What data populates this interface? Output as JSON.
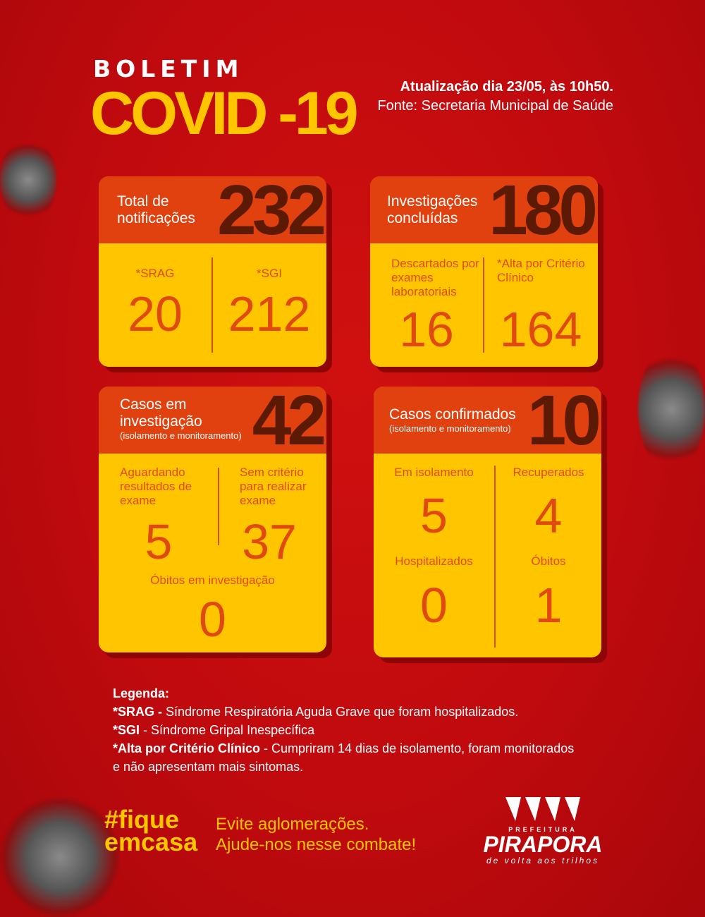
{
  "header": {
    "pre_title": "BOLETIM",
    "title": "COVID -19",
    "update": "Atualização dia 23/05, às 10h50.",
    "source": "Fonte: Secretaria Municipal de Saúde"
  },
  "cards": {
    "notificacoes": {
      "title_1": "Total de",
      "title_2": "notificações",
      "total": "232",
      "left_label": "*SRAG",
      "left_value": "20",
      "right_label": "*SGI",
      "right_value": "212"
    },
    "investigacoes": {
      "title_1": "Investigações",
      "title_2": "concluídas",
      "total": "180",
      "left_label": "Descartados por exames laboratoriais",
      "left_value": "16",
      "right_label": "*Alta por Critério Clínico",
      "right_value": "164"
    },
    "em_investigacao": {
      "title_1": "Casos em",
      "title_2": "investigação",
      "subtitle": "(isolamento e monitoramento)",
      "total": "42",
      "left_label": "Aguardando resultados de exame",
      "left_value": "5",
      "right_label": "Sem critério para realizar exame",
      "right_value": "37",
      "bottom_label": "Óbitos em investigação",
      "bottom_value": "0"
    },
    "confirmados": {
      "title": "Casos confirmados",
      "subtitle": "(isolamento e monitoramento)",
      "total": "10",
      "isolamento_label": "Em isolamento",
      "isolamento_value": "5",
      "recuperados_label": "Recuperados",
      "recuperados_value": "4",
      "hospitalizados_label": "Hospitalizados",
      "hospitalizados_value": "0",
      "obitos_label": "Óbitos",
      "obitos_value": "1"
    }
  },
  "legend": {
    "title": "Legenda:",
    "srag_term": "*SRAG -",
    "srag_text": " Síndrome Respiratória Aguda Grave que foram hospitalizados.",
    "sgi_term": "*SGI",
    "sgi_text": " - Síndrome Gripal Inespecífica",
    "alta_term": "*Alta por Critério Clínico",
    "alta_text": " - Cumpriram 14 dias de isolamento, foram monitorados",
    "alta_text_2": " e não apresentam mais sintomas."
  },
  "footer": {
    "hashtag_1": "#fique",
    "hashtag_2": "emcasa",
    "slogan_1": "Evite aglomerações.",
    "slogan_2": "Ajude-nos nesse combate!",
    "logo_pre": "PREFEITURA",
    "logo_name": "PIRAPORA",
    "logo_tagline": "de volta aos trilhos"
  },
  "colors": {
    "background": "#c00a0e",
    "accent_yellow": "#ffc600",
    "header_orange": "#e0410e",
    "dark_number": "#5c1a05",
    "value_orange": "#e04a10"
  }
}
